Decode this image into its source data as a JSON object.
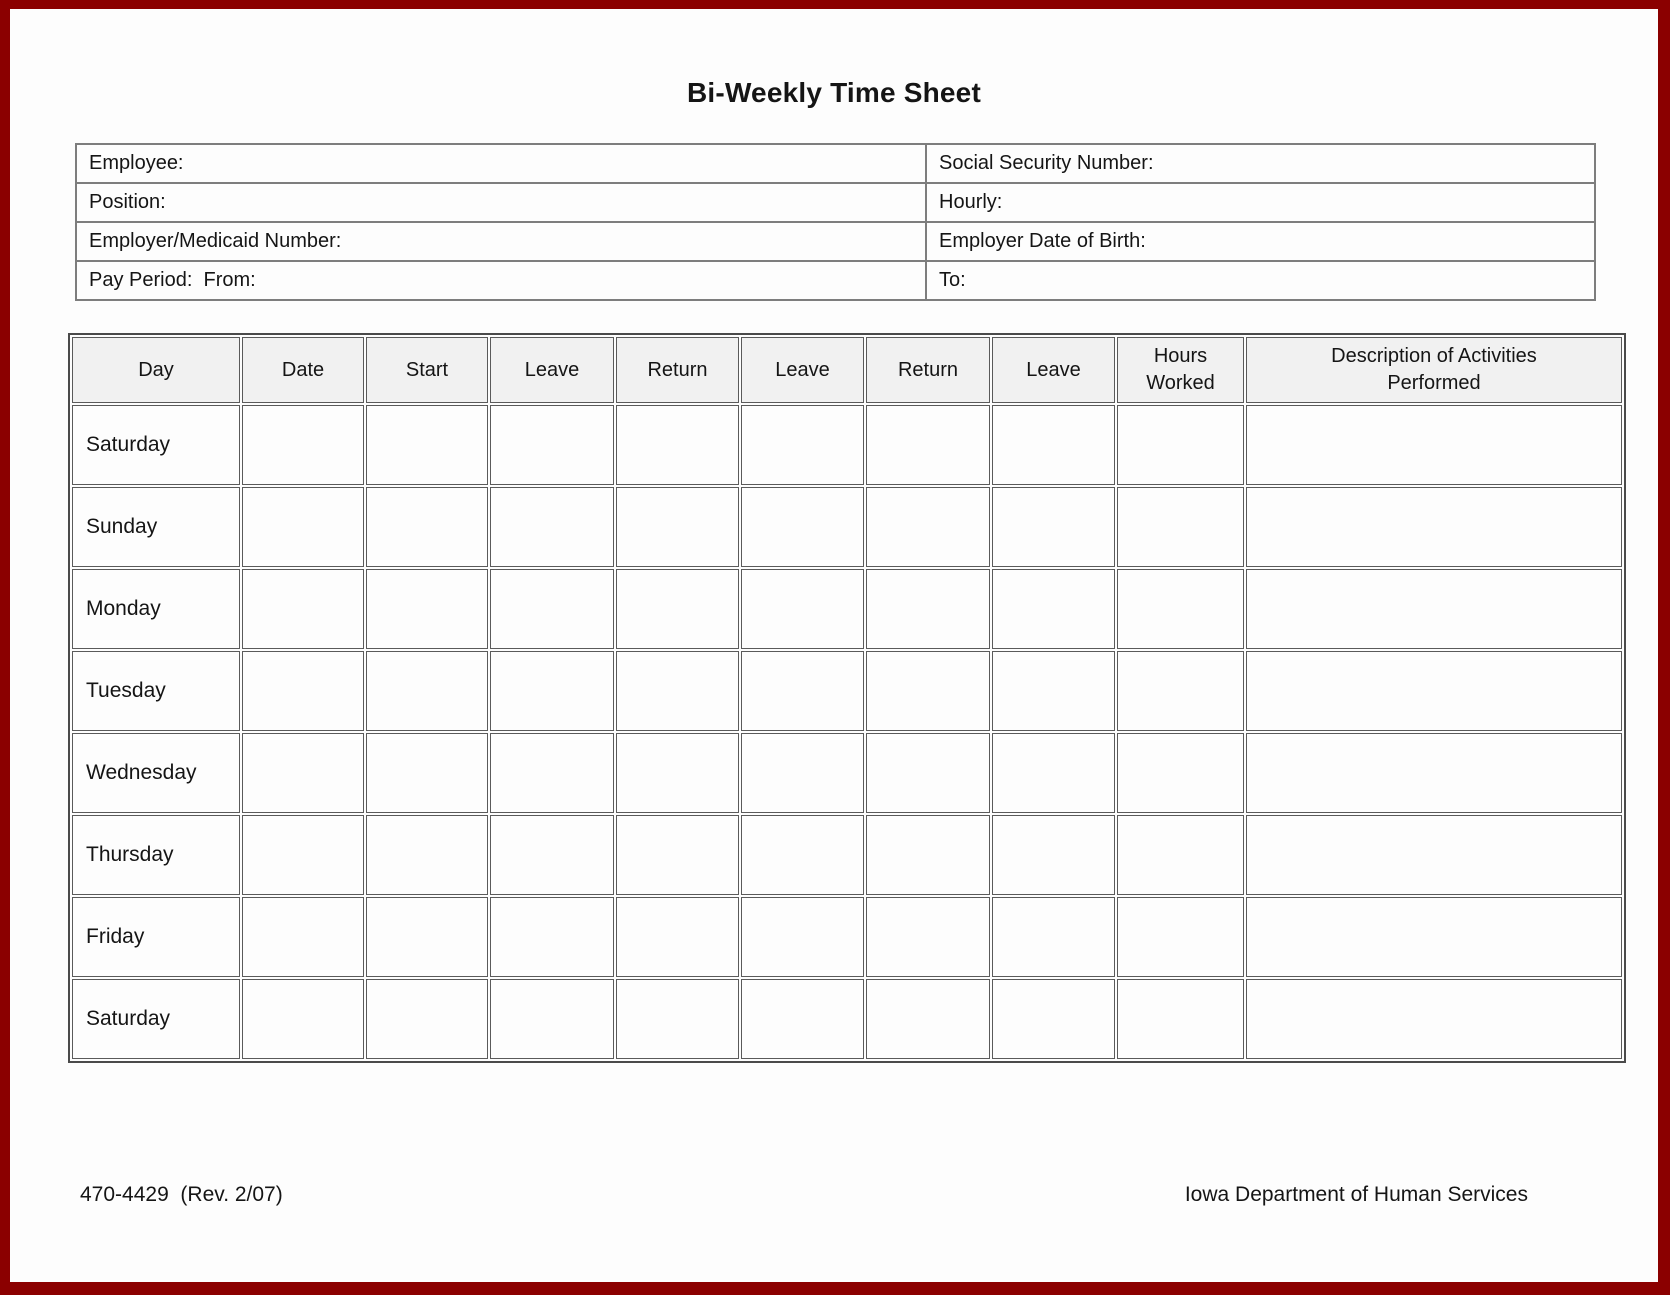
{
  "page": {
    "title": "Bi-Weekly Time Sheet",
    "frame_color": "#8b0000",
    "paper_color": "#fdfdfd",
    "header_cell_color": "#f1f1f1"
  },
  "info_table": {
    "rows": [
      {
        "left": "Employee:",
        "right": "Social Security Number:"
      },
      {
        "left": "Position:",
        "right": "Hourly:"
      },
      {
        "left": "Employer/Medicaid Number:",
        "right": "Employer Date of Birth:"
      },
      {
        "left": "Pay Period:  From:",
        "right": "To:"
      }
    ]
  },
  "time_table": {
    "columns": [
      "Day",
      "Date",
      "Start",
      "Leave",
      "Return",
      "Leave",
      "Return",
      "Leave",
      "Hours Worked",
      "Description of Activities Performed"
    ],
    "rows": [
      "Saturday",
      "Sunday",
      "Monday",
      "Tuesday",
      "Wednesday",
      "Thursday",
      "Friday",
      "Saturday"
    ]
  },
  "footer": {
    "left": "470-4429  (Rev. 2/07)",
    "right": "Iowa Department of Human Services"
  }
}
